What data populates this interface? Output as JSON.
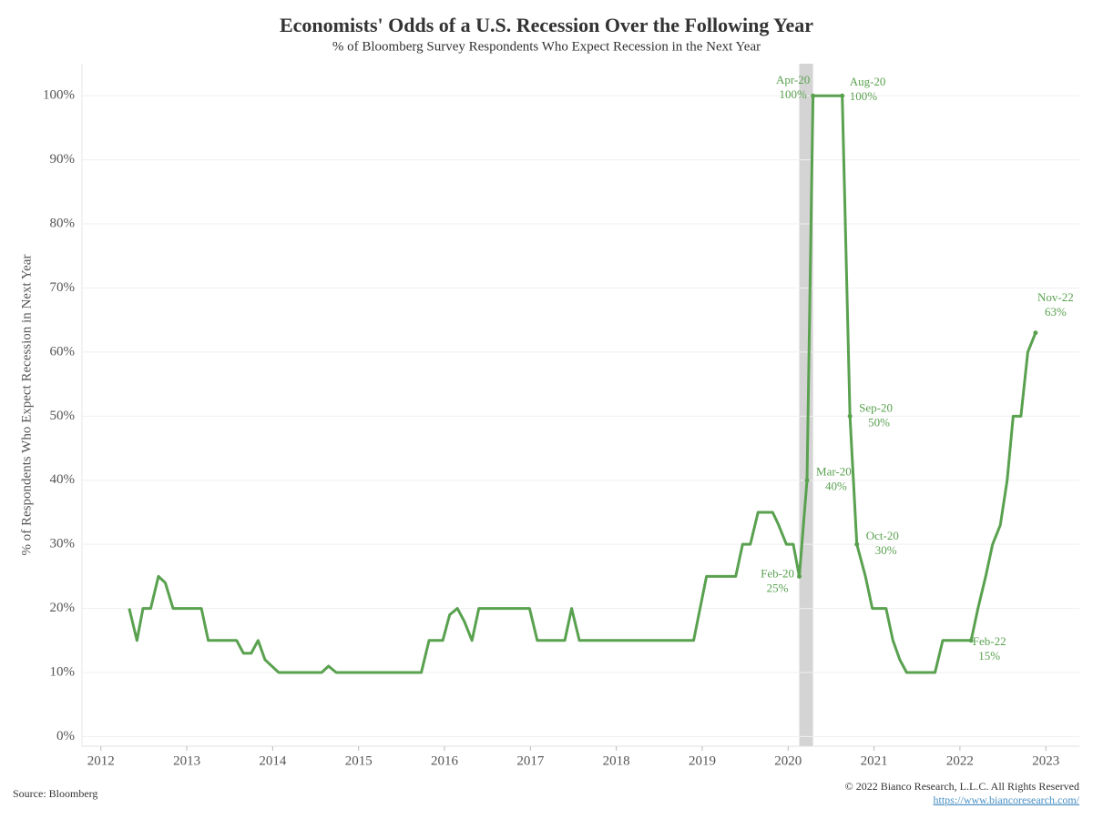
{
  "chart_data": {
    "type": "line",
    "title": "Economists' Odds of a U.S. Recession Over the Following Year",
    "subtitle": "% of Bloomberg Survey Respondents Who Expect Recession in the Next Year",
    "y_label": "% of Respondents Who Expect Recession in Next Year",
    "color": "#59a14f",
    "x": [
      2012.33,
      2012.42,
      2012.49,
      2012.58,
      2012.67,
      2012.75,
      2012.84,
      2013.17,
      2013.25,
      2013.58,
      2013.66,
      2013.75,
      2013.83,
      2013.91,
      2014.07,
      2014.57,
      2014.65,
      2014.74,
      2015.73,
      2015.82,
      2015.98,
      2016.06,
      2016.15,
      2016.23,
      2016.32,
      2016.4,
      2016.99,
      2017.08,
      2017.4,
      2017.48,
      2017.57,
      2018.9,
      2019.05,
      2019.39,
      2019.47,
      2019.56,
      2019.65,
      2019.82,
      2019.89,
      2019.98,
      2020.06,
      2020.13,
      2020.22,
      2020.29,
      2020.63,
      2020.72,
      2020.8,
      2020.9,
      2020.98,
      2021.14,
      2021.22,
      2021.3,
      2021.38,
      2021.71,
      2021.8,
      2022.13,
      2022.21,
      2022.3,
      2022.38,
      2022.47,
      2022.55,
      2022.62,
      2022.71,
      2022.79,
      2022.88
    ],
    "values": [
      20,
      15,
      20,
      20,
      25,
      24,
      20,
      20,
      15,
      15,
      13,
      13,
      15,
      12,
      10,
      10,
      11,
      10,
      10,
      15,
      15,
      19,
      20,
      18,
      15,
      20,
      20,
      15,
      15,
      20,
      15,
      15,
      25,
      25,
      30,
      30,
      35,
      35,
      33,
      30,
      30,
      25,
      40,
      100,
      100,
      50,
      30,
      25,
      20,
      20,
      15,
      12,
      10,
      10,
      15,
      15,
      20,
      25,
      30,
      33,
      40,
      50,
      50,
      60,
      63
    ],
    "xlim": [
      2011.78,
      2023.39
    ],
    "xticks": [
      2012,
      2013,
      2014,
      2015,
      2016,
      2017,
      2018,
      2019,
      2020,
      2021,
      2022,
      2023
    ],
    "ylim": [
      -1.5,
      105
    ],
    "yticks": [
      {
        "value": 0,
        "label": "0%"
      },
      {
        "value": 10,
        "label": "10%"
      },
      {
        "value": 20,
        "label": "20%"
      },
      {
        "value": 30,
        "label": "30%"
      },
      {
        "value": 40,
        "label": "40%"
      },
      {
        "value": 50,
        "label": "50%"
      },
      {
        "value": 60,
        "label": "60%"
      },
      {
        "value": 70,
        "label": "70%"
      },
      {
        "value": 80,
        "label": "80%"
      },
      {
        "value": 90,
        "label": "90%"
      },
      {
        "value": 100,
        "label": "100%"
      }
    ],
    "grid": true,
    "shaded_ranges": [
      {
        "xlim": [
          2020.13,
          2020.29
        ],
        "color": "#d4d4d4"
      }
    ],
    "annotations": [
      {
        "text": "Feb-20",
        "value_label": "25%",
        "x": 2020.13,
        "y": 25,
        "position": "left"
      },
      {
        "text": "Mar-20",
        "value_label": "40%",
        "x": 2020.22,
        "y": 40,
        "position": "right"
      },
      {
        "text": "Apr-20",
        "value_label": "100%",
        "x": 2020.29,
        "y": 100,
        "position": "upper-left"
      },
      {
        "text": "Aug-20",
        "value_label": "100%",
        "x": 2020.63,
        "y": 100,
        "position": "upper-right"
      },
      {
        "text": "Sep-20",
        "value_label": "50%",
        "x": 2020.72,
        "y": 50,
        "position": "right"
      },
      {
        "text": "Oct-20",
        "value_label": "30%",
        "x": 2020.8,
        "y": 30,
        "position": "right"
      },
      {
        "text": "Feb-22",
        "value_label": "15%",
        "x": 2022.13,
        "y": 15,
        "position": "below"
      },
      {
        "text": "Nov-22",
        "value_label": "63%",
        "x": 2022.88,
        "y": 63,
        "position": "above"
      }
    ],
    "source": "Source: Bloomberg",
    "copyright": "© 2022 Bianco Research, L.L.C. All Rights Reserved",
    "link": "https://www.biancoresearch.com/"
  }
}
